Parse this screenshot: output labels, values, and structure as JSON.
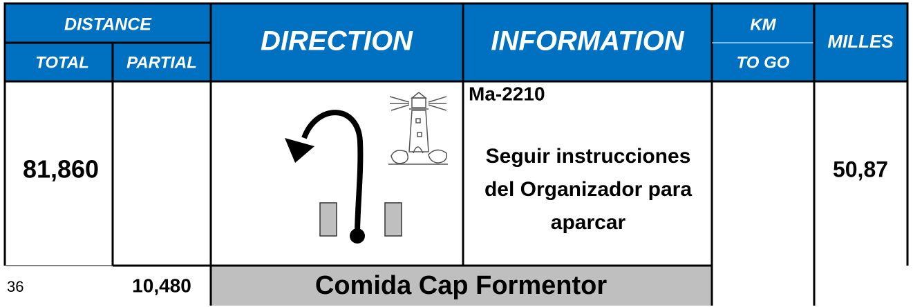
{
  "header": {
    "distance": "DISTANCE",
    "total": "TOTAL",
    "partial": "PARTIAL",
    "direction": "DIRECTION",
    "information": "INFORMATION",
    "km": "KM",
    "to_go": "TO GO",
    "milles": "MILLES"
  },
  "row": {
    "total": "81,860",
    "road": "Ma-2210",
    "info_lines": [
      "Seguir instrucciones",
      "del Organizador para",
      "aparcar"
    ],
    "milles": "50,87"
  },
  "next_row": {
    "number": "36",
    "partial": "10,480",
    "label": "Comida Cap Formentor"
  }
}
